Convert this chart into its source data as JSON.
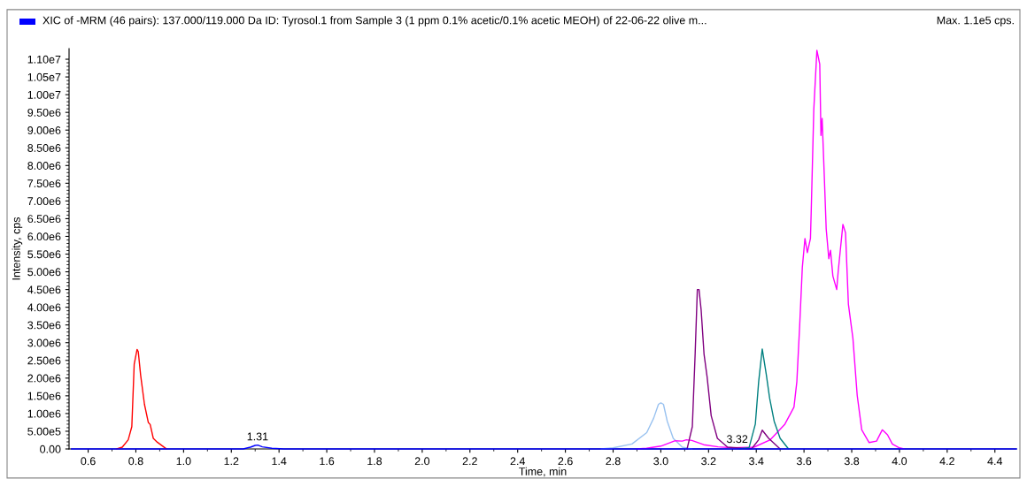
{
  "chart_data": {
    "type": "line",
    "title": "XIC of -MRM (46 pairs): 137.000/119.000 Da ID: Tyrosol.1 from Sample 3 (1 ppm 0.1% acetic/0.1% acetic MEOH) of 22-06-22 olive m...",
    "xlabel": "Time, min",
    "ylabel": "Intensity, cps",
    "annotations": [
      "Max. 1.1e5 cps.",
      {
        "text": "1.31",
        "x": 1.31,
        "y": 110000
      },
      {
        "text": "3.32",
        "x": 3.32,
        "y": 40000
      }
    ],
    "series": [
      {
        "color": "#ff0000",
        "x": [
          0.72,
          0.743,
          0.768,
          0.783,
          0.793,
          0.805,
          0.81,
          0.82,
          0.836,
          0.852,
          0.86,
          0.873,
          0.89,
          0.928
        ],
        "values": [
          0,
          50000,
          260000,
          630000,
          2390000,
          2810000,
          2750000,
          2080000,
          1260000,
          750000,
          690000,
          300000,
          190000,
          0
        ]
      },
      {
        "color": "#99c2f0",
        "x": [
          2.75,
          2.8,
          2.879,
          2.941,
          2.97,
          2.99,
          3.0,
          3.011,
          3.027,
          3.052,
          3.09,
          3.13
        ],
        "values": [
          0,
          30000,
          140000,
          460000,
          870000,
          1260000,
          1300000,
          1260000,
          780000,
          300000,
          50000,
          0
        ]
      },
      {
        "color": "#ff00ff",
        "x": [
          2.9,
          2.94,
          3.0,
          3.058,
          3.09,
          3.107,
          3.13,
          3.18,
          3.24,
          3.3,
          3.39,
          3.459,
          3.52,
          3.558,
          3.57,
          3.582,
          3.593,
          3.604,
          3.614,
          3.627,
          3.63,
          3.641,
          3.654,
          3.666,
          3.671,
          3.676,
          3.685,
          3.693,
          3.704,
          3.711,
          3.721,
          3.737,
          3.743,
          3.763,
          3.774,
          3.786,
          3.805,
          3.823,
          3.842,
          3.873,
          3.904,
          3.928,
          3.95,
          3.97,
          4.0,
          4.02
        ],
        "values": [
          0,
          20000,
          80000,
          230000,
          220000,
          260000,
          240000,
          120000,
          60000,
          30000,
          50000,
          260000,
          700000,
          1180000,
          1900000,
          3500000,
          5130000,
          5940000,
          5540000,
          5940000,
          6650000,
          9570000,
          11250000,
          10860000,
          8850000,
          9330000,
          7710000,
          6210000,
          5370000,
          5610000,
          4880000,
          4500000,
          4990000,
          6340000,
          6100000,
          4090000,
          3120000,
          1510000,
          540000,
          180000,
          220000,
          540000,
          400000,
          140000,
          30000,
          0
        ]
      },
      {
        "color": "#800080",
        "x": [
          3.11,
          3.132,
          3.144,
          3.153,
          3.16,
          3.169,
          3.181,
          3.194,
          3.211,
          3.237,
          3.28,
          3.38,
          3.41,
          3.425,
          3.452,
          3.5
        ],
        "values": [
          0,
          630000,
          2720000,
          4500000,
          4500000,
          3920000,
          2680000,
          2030000,
          940000,
          300000,
          50000,
          0,
          260000,
          530000,
          300000,
          0
        ]
      },
      {
        "color": "#008080",
        "x": [
          3.33,
          3.37,
          3.396,
          3.41,
          3.425,
          3.442,
          3.456,
          3.475,
          3.5,
          3.535
        ],
        "values": [
          0,
          40000,
          700000,
          1900000,
          2820000,
          2100000,
          1430000,
          780000,
          300000,
          0
        ]
      },
      {
        "color": "#0000ff",
        "x": [
          0.53,
          0.7,
          1.25,
          1.28,
          1.3,
          1.311,
          1.33,
          1.37,
          1.42,
          2.7,
          4.05,
          4.49
        ],
        "values": [
          0,
          0,
          0,
          50000,
          100000,
          110000,
          60000,
          20000,
          0,
          0,
          0,
          0
        ]
      }
    ],
    "xlim": [
      0.52,
      4.49
    ],
    "ylim": [
      0,
      11300000
    ],
    "xticks": [
      {
        "value": 0.6,
        "label": "0.6"
      },
      {
        "value": 0.8,
        "label": "0.8"
      },
      {
        "value": 1.0,
        "label": "1.0"
      },
      {
        "value": 1.2,
        "label": "1.2"
      },
      {
        "value": 1.4,
        "label": "1.4"
      },
      {
        "value": 1.6,
        "label": "1.6"
      },
      {
        "value": 1.8,
        "label": "1.8"
      },
      {
        "value": 2.0,
        "label": "2.0"
      },
      {
        "value": 2.2,
        "label": "2.2"
      },
      {
        "value": 2.4,
        "label": "2.4"
      },
      {
        "value": 2.6,
        "label": "2.6"
      },
      {
        "value": 2.8,
        "label": "2.8"
      },
      {
        "value": 3.0,
        "label": "3.0"
      },
      {
        "value": 3.2,
        "label": "3.2"
      },
      {
        "value": 3.4,
        "label": "3.4"
      },
      {
        "value": 3.6,
        "label": "3.6"
      },
      {
        "value": 3.8,
        "label": "3.8"
      },
      {
        "value": 4.0,
        "label": "4.0"
      },
      {
        "value": 4.2,
        "label": "4.2"
      },
      {
        "value": 4.4,
        "label": "4.4"
      }
    ],
    "yticks": [
      {
        "value": 0,
        "label": "0.00"
      },
      {
        "value": 500000,
        "label": "5.00e5"
      },
      {
        "value": 1000000,
        "label": "1.00e6"
      },
      {
        "value": 1500000,
        "label": "1.50e6"
      },
      {
        "value": 2000000,
        "label": "2.00e6"
      },
      {
        "value": 2500000,
        "label": "2.50e6"
      },
      {
        "value": 3000000,
        "label": "3.00e6"
      },
      {
        "value": 3500000,
        "label": "3.50e6"
      },
      {
        "value": 4000000,
        "label": "4.00e6"
      },
      {
        "value": 4500000,
        "label": "4.50e6"
      },
      {
        "value": 5000000,
        "label": "5.00e6"
      },
      {
        "value": 5500000,
        "label": "5.50e6"
      },
      {
        "value": 6000000,
        "label": "6.00e6"
      },
      {
        "value": 6500000,
        "label": "6.50e6"
      },
      {
        "value": 7000000,
        "label": "7.00e6"
      },
      {
        "value": 7500000,
        "label": "7.50e6"
      },
      {
        "value": 8000000,
        "label": "8.00e6"
      },
      {
        "value": 8500000,
        "label": "8.50e6"
      },
      {
        "value": 9000000,
        "label": "9.00e6"
      },
      {
        "value": 9500000,
        "label": "9.50e6"
      },
      {
        "value": 10000000,
        "label": "1.00e7"
      },
      {
        "value": 10500000,
        "label": "1.05e7"
      },
      {
        "value": 11000000,
        "label": "1.10e7"
      }
    ]
  }
}
